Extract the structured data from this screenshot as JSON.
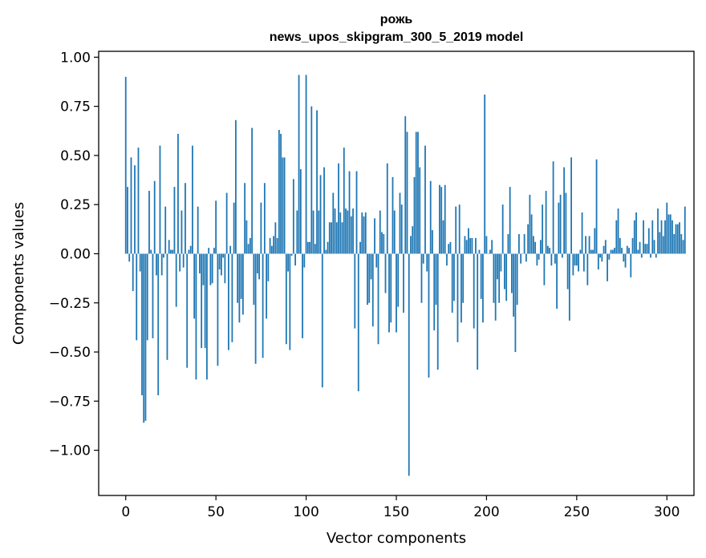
{
  "chart_data": {
    "type": "bar",
    "title_line1": "рожь",
    "title_line2": "news_upos_skipgram_300_5_2019 model",
    "xlabel": "Vector components",
    "ylabel": "Components values",
    "xlim": [
      -15,
      315
    ],
    "ylim": [
      -1.23,
      1.03
    ],
    "x_ticks": [
      0,
      50,
      100,
      150,
      200,
      250,
      300
    ],
    "x_tick_labels": [
      "0",
      "50",
      "100",
      "150",
      "200",
      "250",
      "300"
    ],
    "y_ticks": [
      1.0,
      0.75,
      0.5,
      0.25,
      0.0,
      -0.25,
      -0.5,
      -0.75,
      -1.0
    ],
    "y_tick_labels": [
      "1.00",
      "0.75",
      "0.50",
      "0.25",
      "0.00",
      "−0.25",
      "−0.50",
      "−0.75",
      "−1.00"
    ],
    "bar_color": "#1f77b4",
    "values": [
      0.9,
      0.34,
      -0.04,
      0.49,
      -0.19,
      0.45,
      -0.44,
      0.54,
      -0.09,
      -0.72,
      -0.86,
      -0.85,
      -0.44,
      0.32,
      0.02,
      -0.43,
      0.37,
      -0.11,
      -0.72,
      0.55,
      -0.11,
      -0.02,
      0.24,
      -0.54,
      0.07,
      0.02,
      0.02,
      0.34,
      -0.27,
      0.61,
      -0.09,
      0.22,
      -0.07,
      0.36,
      -0.58,
      0.02,
      0.04,
      0.55,
      -0.33,
      -0.64,
      0.24,
      -0.1,
      -0.48,
      -0.16,
      -0.48,
      -0.64,
      0.03,
      -0.16,
      -0.15,
      0.03,
      0.27,
      -0.57,
      -0.08,
      -0.11,
      -0.02,
      -0.15,
      0.31,
      -0.49,
      0.04,
      -0.45,
      0.26,
      0.68,
      -0.25,
      -0.35,
      -0.23,
      -0.31,
      0.36,
      0.17,
      0.05,
      0.08,
      0.64,
      -0.26,
      -0.56,
      -0.1,
      -0.13,
      0.26,
      -0.53,
      0.36,
      -0.33,
      -0.14,
      0.08,
      0.04,
      0.09,
      0.16,
      0.08,
      0.63,
      0.61,
      0.49,
      0.49,
      -0.46,
      -0.09,
      -0.49,
      -0.01,
      0.38,
      -0.06,
      0.22,
      0.91,
      0.43,
      -0.43,
      -0.07,
      0.91,
      0.06,
      0.06,
      0.75,
      0.22,
      0.05,
      0.73,
      0.22,
      0.4,
      -0.68,
      0.44,
      0.02,
      0.06,
      0.16,
      0.16,
      0.31,
      0.23,
      0.16,
      0.46,
      0.21,
      0.16,
      0.54,
      0.23,
      0.22,
      0.42,
      0.19,
      0.23,
      -0.38,
      0.42,
      -0.7,
      0.06,
      0.21,
      0.19,
      0.21,
      -0.26,
      -0.25,
      -0.13,
      -0.37,
      0.18,
      -0.07,
      -0.46,
      0.22,
      0.11,
      0.1,
      -0.2,
      0.46,
      -0.4,
      -0.35,
      0.39,
      0.22,
      -0.4,
      -0.27,
      0.31,
      0.25,
      -0.3,
      0.7,
      0.62,
      -1.13,
      0.09,
      0.14,
      0.39,
      0.62,
      0.62,
      0.44,
      -0.25,
      -0.05,
      0.55,
      -0.09,
      -0.63,
      0.37,
      0.12,
      -0.39,
      -0.26,
      -0.59,
      0.35,
      0.34,
      0.17,
      0.35,
      -0.06,
      0.05,
      0.06,
      -0.3,
      -0.24,
      0.24,
      -0.45,
      0.25,
      -0.35,
      -0.25,
      0.09,
      0.07,
      0.13,
      0.08,
      0.08,
      -0.38,
      0.08,
      -0.59,
      0.02,
      -0.23,
      -0.35,
      0.81,
      0.09,
      0.0,
      0.02,
      0.07,
      -0.25,
      -0.34,
      -0.13,
      -0.25,
      -0.09,
      0.25,
      -0.18,
      -0.24,
      0.1,
      0.34,
      -0.2,
      -0.32,
      -0.5,
      -0.26,
      0.1,
      -0.05,
      0.0,
      0.1,
      -0.04,
      0.15,
      0.3,
      0.2,
      0.09,
      0.06,
      -0.06,
      -0.03,
      0.07,
      0.25,
      -0.16,
      0.32,
      0.04,
      0.03,
      -0.06,
      0.47,
      -0.05,
      -0.28,
      0.26,
      0.3,
      -0.02,
      0.44,
      0.31,
      -0.18,
      -0.34,
      0.49,
      -0.11,
      -0.06,
      -0.06,
      -0.09,
      0.02,
      0.21,
      -0.09,
      0.09,
      -0.16,
      0.09,
      0.02,
      0.02,
      0.13,
      0.48,
      -0.08,
      -0.02,
      -0.04,
      0.04,
      0.07,
      -0.14,
      -0.03,
      0.02,
      0.02,
      0.03,
      0.17,
      0.23,
      0.08,
      0.03,
      -0.04,
      -0.07,
      0.04,
      0.03,
      -0.12,
      0.08,
      0.17,
      0.21,
      0.02,
      0.06,
      -0.02,
      0.17,
      0.05,
      0.05,
      0.13,
      -0.02,
      0.17,
      0.07,
      -0.02,
      0.23,
      0.11,
      0.17,
      0.09,
      0.17,
      0.26,
      0.2,
      0.2,
      0.17,
      0.1,
      0.15,
      0.15,
      0.16,
      0.1,
      0.07,
      0.24
    ]
  }
}
